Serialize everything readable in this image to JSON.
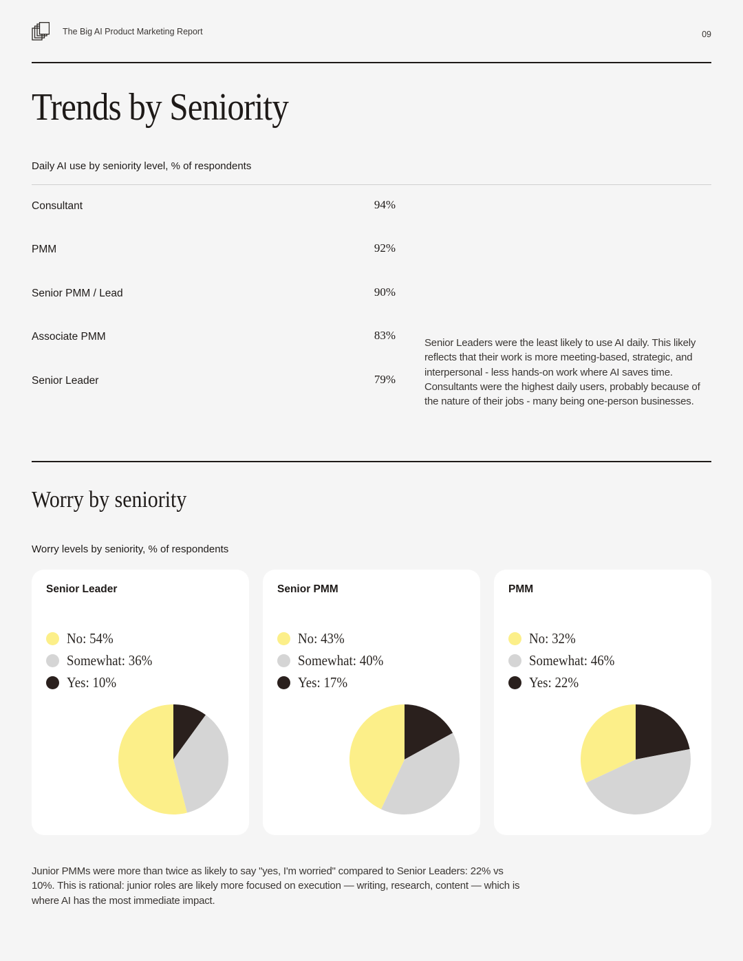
{
  "header": {
    "logo_icon": "stacked-pages-icon",
    "report_title": "The Big AI Product Marketing Report",
    "page_number": "09"
  },
  "trends": {
    "title": "Trends by Seniority",
    "subtitle": "Daily AI use by seniority level, % of respondents",
    "rows": [
      {
        "label": "Consultant",
        "value": "94%"
      },
      {
        "label": "PMM",
        "value": "92%"
      },
      {
        "label": "Senior PMM / Lead",
        "value": "90%"
      },
      {
        "label": "Associate PMM",
        "value": "83%"
      },
      {
        "label": "Senior Leader",
        "value": "79%"
      }
    ],
    "insight": "Senior Leaders were the least likely to use AI daily. This likely reflects that their work is more meeting-based, strategic, and interpersonal - less hands-on work where AI saves time. Consultants were the highest daily users, probably because of the nature of their jobs - many being one-person businesses."
  },
  "worry": {
    "title": "Worry by seniority",
    "subtitle": "Worry levels by seniority, % of respondents",
    "footnote": "Junior PMMs were more than twice as likely to say \"yes, I'm worried\" compared to Senior Leaders: 22% vs 10%. This is rational: junior roles are likely more focused on execution — writing, research, content — which is where AI has the most immediate impact."
  },
  "colors": {
    "no": "#fcef89",
    "somewhat": "#d5d5d5",
    "yes": "#2a201d"
  },
  "chart_data": [
    {
      "type": "pie",
      "title": "Senior Leader",
      "categories": [
        "No",
        "Somewhat",
        "Yes"
      ],
      "values": [
        54,
        36,
        10
      ],
      "legend_labels": [
        "No: 54%",
        "Somewhat: 36%",
        "Yes: 10%"
      ],
      "legend": "top-left"
    },
    {
      "type": "pie",
      "title": "Senior PMM",
      "categories": [
        "No",
        "Somewhat",
        "Yes"
      ],
      "values": [
        43,
        40,
        17
      ],
      "legend_labels": [
        "No: 43%",
        "Somewhat: 40%",
        "Yes: 17%"
      ],
      "legend": "top-left"
    },
    {
      "type": "pie",
      "title": "PMM",
      "categories": [
        "No",
        "Somewhat",
        "Yes"
      ],
      "values": [
        32,
        46,
        22
      ],
      "legend_labels": [
        "No: 32%",
        "Somewhat: 46%",
        "Yes: 22%"
      ],
      "legend": "top-left"
    }
  ]
}
